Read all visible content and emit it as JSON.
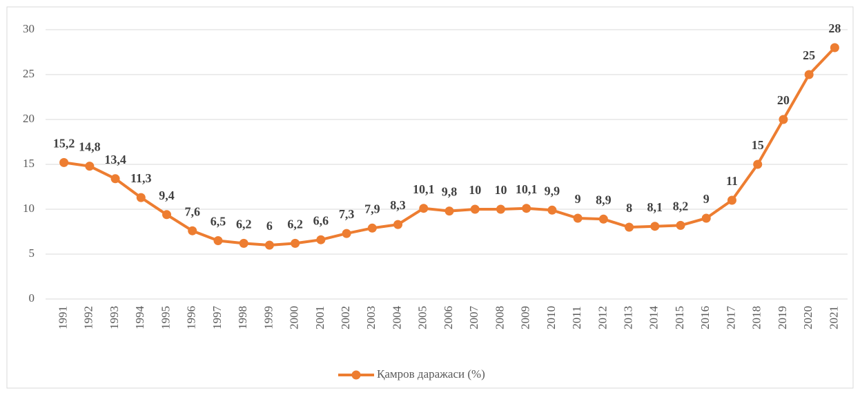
{
  "chart_data": {
    "type": "line",
    "categories": [
      "1991",
      "1992",
      "1993",
      "1994",
      "1995",
      "1996",
      "1997",
      "1998",
      "1999",
      "2000",
      "2001",
      "2002",
      "2003",
      "2004",
      "2005",
      "2006",
      "2007",
      "2008",
      "2009",
      "2010",
      "2011",
      "2012",
      "2013",
      "2014",
      "2015",
      "2016",
      "2017",
      "2018",
      "2019",
      "2020",
      "2021"
    ],
    "series": [
      {
        "name": "Қамров даражаси (%)",
        "color": "#ed7d31",
        "values": [
          15.2,
          14.8,
          13.4,
          11.3,
          9.4,
          7.6,
          6.5,
          6.2,
          6,
          6.2,
          6.6,
          7.3,
          7.9,
          8.3,
          10.1,
          9.8,
          10,
          10,
          10.1,
          9.9,
          9,
          8.9,
          8,
          8.1,
          8.2,
          9,
          11,
          15,
          20,
          25,
          28
        ],
        "value_labels": [
          "15,2",
          "14,8",
          "13,4",
          "11,3",
          "9,4",
          "7,6",
          "6,5",
          "6,2",
          "6",
          "6,2",
          "6,6",
          "7,3",
          "7,9",
          "8,3",
          "10,1",
          "9,8",
          "10",
          "10",
          "10,1",
          "9,9",
          "9",
          "8,9",
          "8",
          "8,1",
          "8,2",
          "9",
          "11",
          "15",
          "20",
          "25",
          "28"
        ]
      }
    ],
    "ylim": [
      0,
      30
    ],
    "yticks": [
      0,
      5,
      10,
      15,
      20,
      25,
      30
    ],
    "grid": true,
    "legend": "bottom"
  }
}
